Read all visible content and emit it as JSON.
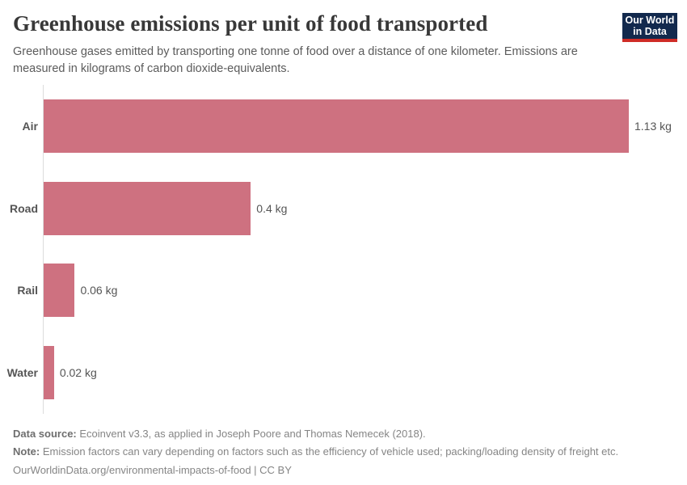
{
  "header": {
    "title": "Greenhouse emissions per unit of food transported",
    "subtitle": "Greenhouse gases emitted by transporting one tonne of food over a distance of one kilometer. Emissions are measured in kilograms of carbon dioxide-equivalents.",
    "logo": {
      "line1": "Our World",
      "line2": "in Data"
    }
  },
  "chart_data": {
    "type": "bar",
    "orientation": "horizontal",
    "title": "Greenhouse emissions per unit of food transported",
    "categories": [
      "Air",
      "Road",
      "Rail",
      "Water"
    ],
    "values": [
      1.13,
      0.4,
      0.06,
      0.02
    ],
    "value_labels": [
      "1.13 kg",
      "0.4 kg",
      "0.06 kg",
      "0.02 kg"
    ],
    "unit": "kg",
    "xlabel": "",
    "ylabel": "",
    "xlim": [
      0,
      1.13
    ],
    "grid": false,
    "legend": "none",
    "bar_color": "#ce7180",
    "axis_color": "#dcdcdc"
  },
  "footer": {
    "datasource_label": "Data source:",
    "datasource_text": " Ecoinvent v3.3, as applied in Joseph Poore and Thomas Nemecek (2018).",
    "note_label": "Note:",
    "note_text": " Emission factors can vary depending on factors such as the efficiency of vehicle used; packing/loading density of freight etc.",
    "citation": "OurWorldinData.org/environmental-impacts-of-food | CC BY"
  },
  "colors": {
    "logo_navy": "#12294d",
    "logo_red": "#cf2c26"
  }
}
